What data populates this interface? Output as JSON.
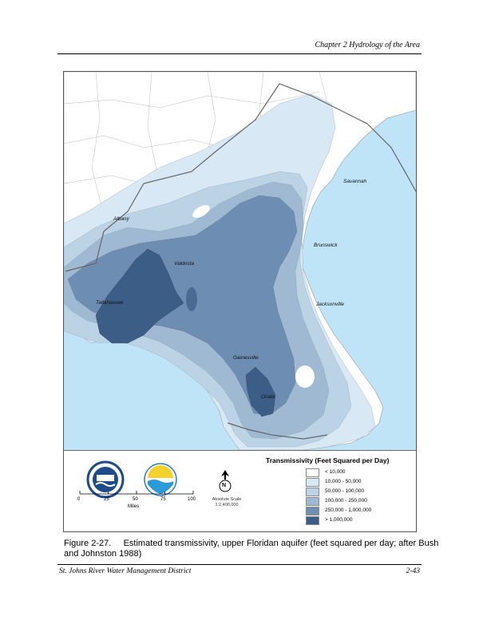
{
  "header": {
    "chapter": "Chapter 2 Hydrology of the Area"
  },
  "map": {
    "cities": [
      {
        "id": "savannah",
        "name": "Savannah"
      },
      {
        "id": "albany",
        "name": "Albany"
      },
      {
        "id": "brunswick",
        "name": "Brunswick"
      },
      {
        "id": "valdosta",
        "name": "Valdosta"
      },
      {
        "id": "tallahassee",
        "name": "Tallahassee"
      },
      {
        "id": "jacksonville",
        "name": "Jacksonville"
      },
      {
        "id": "gainesville",
        "name": "Gainesville"
      },
      {
        "id": "ocala",
        "name": "Ocala"
      }
    ],
    "colors": {
      "ocean": "#bfe4f7",
      "land": "#ffffff",
      "c1": "#d8e8f5",
      "c2": "#bcd3e6",
      "c3": "#9fb9d2",
      "c4": "#7e9cbd",
      "c5": "#5d7fa6",
      "c6": "#3c5d86"
    }
  },
  "legend": {
    "title": "Transmissivity (Feet Squared per Day)",
    "classes": [
      {
        "label": "< 10,000",
        "color": "#ffffff"
      },
      {
        "label": "10,000 - 50,000",
        "color": "#d8e8f5"
      },
      {
        "label": "50,000 - 100,000",
        "color": "#bcd3e6"
      },
      {
        "label": "100,000 - 250,000",
        "color": "#9fb9d2"
      },
      {
        "label": "250,000 - 1,000,000",
        "color": "#6e8db3"
      },
      {
        "label": "> 1,000,000",
        "color": "#3c5d86"
      }
    ],
    "scale_ticks": [
      "0",
      "25",
      "50",
      "75",
      "100"
    ],
    "scale_unit": "Miles",
    "absolute_scale_label": "Absolute Scale",
    "absolute_scale_value": "1:2,400,000",
    "north": "N"
  },
  "caption": "Figure 2-27.     Estimated transmissivity, upper Floridan aquifer (feet squared per day; after Bush and Johnston 1988)",
  "footer": {
    "left": "St. Johns River Water Management District",
    "right": "2-43"
  }
}
